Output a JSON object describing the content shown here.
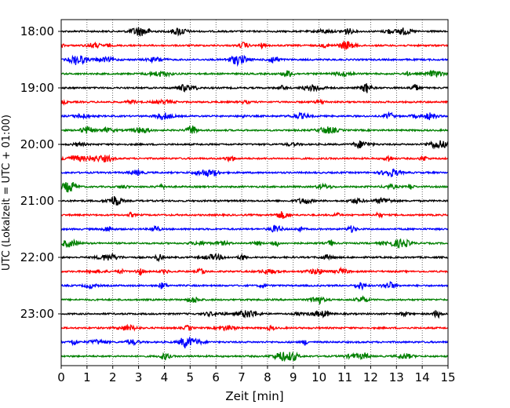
{
  "chart_data": {
    "type": "line",
    "title": "",
    "xlabel": "Zeit  [min]",
    "ylabel": "UTC (Lokalzeit = UTC + 01:00)",
    "xlim": [
      0,
      15
    ],
    "x_ticks": [
      "0",
      "1",
      "2",
      "3",
      "4",
      "5",
      "6",
      "7",
      "8",
      "9",
      "10",
      "11",
      "12",
      "13",
      "14",
      "15"
    ],
    "y_ticks": [
      {
        "label": "18:00",
        "hour_offset": 0
      },
      {
        "label": "19:00",
        "hour_offset": 1
      },
      {
        "label": "20:00",
        "hour_offset": 2
      },
      {
        "label": "21:00",
        "hour_offset": 3
      },
      {
        "label": "22:00",
        "hour_offset": 4
      },
      {
        "label": "23:00",
        "hour_offset": 5
      }
    ],
    "trace_interval_minutes": 15,
    "trace_count": 24,
    "trace_colors": [
      "#000000",
      "#ff0000",
      "#0000ff",
      "#008000"
    ],
    "grid": "vertical dotted at each minute"
  }
}
